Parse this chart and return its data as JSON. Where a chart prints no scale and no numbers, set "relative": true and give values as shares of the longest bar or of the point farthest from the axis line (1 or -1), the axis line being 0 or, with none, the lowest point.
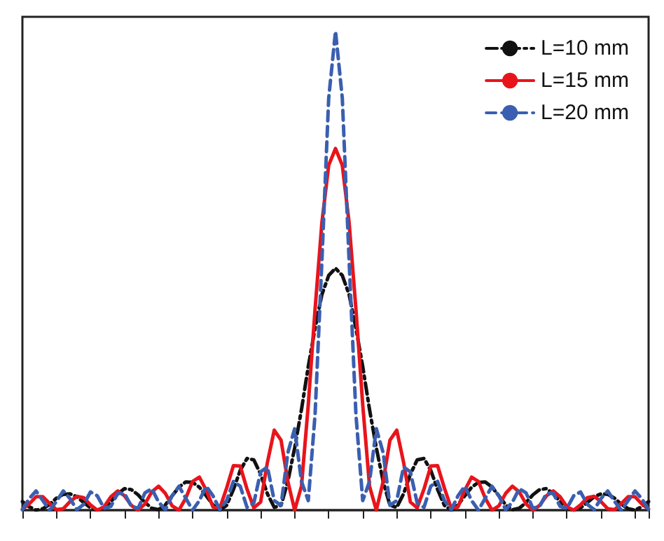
{
  "chart_data": {
    "type": "line",
    "relative": true,
    "grid": false,
    "legend": "top right",
    "categories": [
      null,
      null,
      null,
      null,
      null,
      null,
      null,
      null,
      null,
      null,
      null,
      null,
      null,
      null,
      null,
      null,
      null,
      null,
      null,
      null,
      null,
      null,
      null,
      null,
      null,
      null,
      null,
      null,
      null,
      null,
      null,
      null,
      null,
      null,
      null,
      null,
      null,
      null,
      null,
      null,
      null,
      null,
      null,
      null,
      null,
      null,
      null,
      null,
      null,
      null,
      null,
      null,
      null,
      null,
      null,
      null,
      null,
      null,
      null,
      null,
      null,
      null,
      null,
      null,
      null,
      null,
      null,
      null,
      null,
      null,
      null,
      null,
      null,
      null,
      null,
      null,
      null,
      null,
      null,
      null,
      null,
      null,
      null,
      null,
      null,
      null,
      null,
      null,
      null,
      null,
      null,
      null,
      null
    ],
    "series": [
      {
        "name": "L=10 mm",
        "color": "#111111",
        "line_style": "dashdot",
        "values": [
          0.018,
          0.007,
          0,
          0.003,
          0.012,
          0.025,
          0.033,
          0.034,
          0.028,
          0.016,
          0.005,
          0,
          0.005,
          0.018,
          0.034,
          0.045,
          0.043,
          0.032,
          0.016,
          0.004,
          0.001,
          0.011,
          0.03,
          0.048,
          0.059,
          0.058,
          0.048,
          0.03,
          0.011,
          0,
          0.01,
          0.043,
          0.083,
          0.108,
          0.105,
          0.075,
          0.034,
          0.006,
          0.01,
          0.06,
          0.13,
          0.21,
          0.3,
          0.38,
          0.45,
          0.49,
          0.505,
          0.49,
          0.45,
          0.38,
          0.3,
          0.21,
          0.13,
          0.06,
          0.01,
          0.006,
          0.034,
          0.075,
          0.105,
          0.108,
          0.083,
          0.043,
          0.01,
          0,
          0.011,
          0.03,
          0.048,
          0.058,
          0.059,
          0.048,
          0.03,
          0.011,
          0.001,
          0.004,
          0.016,
          0.032,
          0.043,
          0.045,
          0.034,
          0.018,
          0.005,
          0,
          0.005,
          0.016,
          0.028,
          0.034,
          0.033,
          0.025,
          0.012,
          0.003,
          0,
          0.007,
          0.018
        ]
      },
      {
        "name": "L=15 mm",
        "color": "#e8141c",
        "line_style": "solid",
        "values": [
          0.002,
          0.013,
          0.028,
          0.028,
          0.014,
          0.001,
          0.003,
          0.018,
          0.029,
          0.026,
          0.011,
          0,
          0.007,
          0.028,
          0.04,
          0.03,
          0.01,
          0,
          0.013,
          0.038,
          0.05,
          0.035,
          0.009,
          0,
          0.025,
          0.06,
          0.069,
          0.042,
          0.007,
          0.004,
          0.046,
          0.093,
          0.092,
          0.044,
          0.005,
          0.017,
          0.1,
          0.167,
          0.146,
          0.06,
          0,
          0.05,
          0.22,
          0.42,
          0.6,
          0.72,
          0.755,
          0.72,
          0.6,
          0.42,
          0.22,
          0.05,
          0,
          0.06,
          0.146,
          0.167,
          0.1,
          0.017,
          0.005,
          0.044,
          0.092,
          0.093,
          0.046,
          0.004,
          0.007,
          0.042,
          0.069,
          0.06,
          0.025,
          0,
          0.009,
          0.035,
          0.05,
          0.038,
          0.013,
          0,
          0.01,
          0.03,
          0.04,
          0.028,
          0.007,
          0,
          0.011,
          0.026,
          0.029,
          0.018,
          0.003,
          0.001,
          0.014,
          0.028,
          0.028,
          0.013,
          0.002
        ]
      },
      {
        "name": "L=20 mm",
        "color": "#3a5fb0",
        "line_style": "dashed",
        "values": [
          0.001,
          0.024,
          0.04,
          0.02,
          0,
          0.018,
          0.04,
          0.024,
          0.001,
          0.012,
          0.038,
          0.03,
          0.004,
          0.008,
          0.035,
          0.035,
          0.008,
          0.004,
          0.036,
          0.045,
          0.017,
          0.001,
          0.03,
          0.05,
          0.025,
          0,
          0.02,
          0.05,
          0.03,
          0.001,
          0.02,
          0.06,
          0.05,
          0.006,
          0.015,
          0.08,
          0.09,
          0.02,
          0.01,
          0.12,
          0.17,
          0.06,
          0.02,
          0.2,
          0.52,
          0.86,
          1,
          0.86,
          0.52,
          0.2,
          0.02,
          0.06,
          0.17,
          0.12,
          0.01,
          0.02,
          0.09,
          0.08,
          0.015,
          0.006,
          0.05,
          0.06,
          0.02,
          0.001,
          0.03,
          0.05,
          0.02,
          0,
          0.025,
          0.05,
          0.03,
          0.001,
          0.017,
          0.045,
          0.036,
          0.004,
          0.008,
          0.035,
          0.035,
          0.008,
          0.004,
          0.03,
          0.038,
          0.012,
          0.001,
          0.024,
          0.04,
          0.018,
          0,
          0.02,
          0.04,
          0.024,
          0.001
        ]
      }
    ]
  }
}
